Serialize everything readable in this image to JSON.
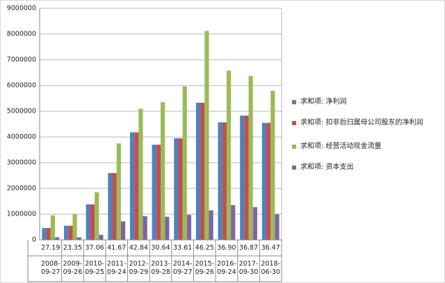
{
  "chart_data": {
    "type": "bar",
    "categories": [
      "2008-09-27",
      "2009-09-26",
      "2010-09-25",
      "2011-09-24",
      "2012-09-29",
      "2013-09-28",
      "2014-09-27",
      "2015-09-26",
      "2016-09-24",
      "2017-09-30",
      "2018-06-30"
    ],
    "subcategories": [
      "27.19",
      "23.35",
      "37.06",
      "41.67",
      "42.84",
      "30.64",
      "33.61",
      "46.25",
      "36.90",
      "36.87",
      "36.47"
    ],
    "series": [
      {
        "name": "求和项: 净利润",
        "color": "#4f81bd",
        "values": [
          460000,
          550000,
          1380000,
          2600000,
          4180000,
          3700000,
          3950000,
          5330000,
          4570000,
          4830000,
          4550000
        ]
      },
      {
        "name": "求和项: 扣非后归属母公司股东的净利润",
        "color": "#c0504d",
        "values": [
          460000,
          550000,
          1380000,
          2600000,
          4180000,
          3700000,
          3950000,
          5330000,
          4570000,
          4830000,
          4550000
        ]
      },
      {
        "name": "求和项: 经营活动现金流量",
        "color": "#9bbb59",
        "values": [
          950000,
          1000000,
          1850000,
          3750000,
          5100000,
          5350000,
          5970000,
          8120000,
          6580000,
          6370000,
          5800000
        ]
      },
      {
        "name": "求和项: 资本支出",
        "color": "#8064a2",
        "values": [
          100000,
          100000,
          200000,
          720000,
          920000,
          900000,
          970000,
          1150000,
          1350000,
          1270000,
          1000000
        ]
      }
    ],
    "ylim": [
      0,
      9000000
    ],
    "yticks": [
      0,
      1000000,
      2000000,
      3000000,
      4000000,
      5000000,
      6000000,
      7000000,
      8000000,
      9000000
    ],
    "grid": true,
    "legend": "right"
  }
}
